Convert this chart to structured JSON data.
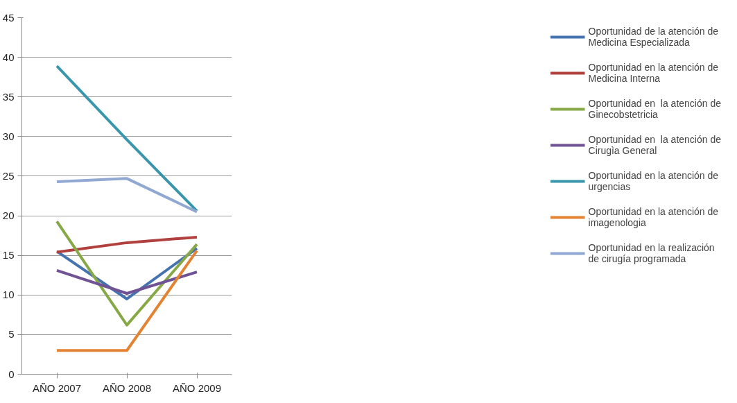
{
  "chart_data": {
    "type": "line",
    "categories": [
      "AÑO 2007",
      "AÑO 2008",
      "AÑO 2009"
    ],
    "ylim": [
      0,
      45
    ],
    "yticks": [
      0,
      5,
      10,
      15,
      20,
      25,
      30,
      35,
      40,
      45
    ],
    "grid": "y",
    "legend": "right",
    "series": [
      {
        "name": "Oportunidad de la atención de Medicina Especializada",
        "color": "#4573b0",
        "values": [
          15.5,
          9.5,
          15.9
        ]
      },
      {
        "name": "Oportunidad en la atención de Medicina Interna",
        "color": "#b0413e",
        "values": [
          15.4,
          16.6,
          17.3
        ]
      },
      {
        "name": "Oportunidad en  la atención de Ginecobstetricia",
        "color": "#86a846",
        "values": [
          19.3,
          6.2,
          16.4
        ]
      },
      {
        "name": "Oportunidad en  la atención de Cirugìa General",
        "color": "#6f5394",
        "values": [
          13.1,
          10.2,
          12.9
        ]
      },
      {
        "name": "Oportunidad en la atención de urgencias",
        "color": "#3996ab",
        "values": [
          38.9,
          29.6,
          20.6
        ]
      },
      {
        "name": "Oportunidad en la atención de imagenologia",
        "color": "#e38434",
        "values": [
          3.0,
          3.0,
          15.6
        ]
      },
      {
        "name": "Oportunidad en la realización de cirugía programada",
        "color": "#91a9d2",
        "values": [
          24.3,
          24.7,
          20.5
        ]
      }
    ]
  }
}
